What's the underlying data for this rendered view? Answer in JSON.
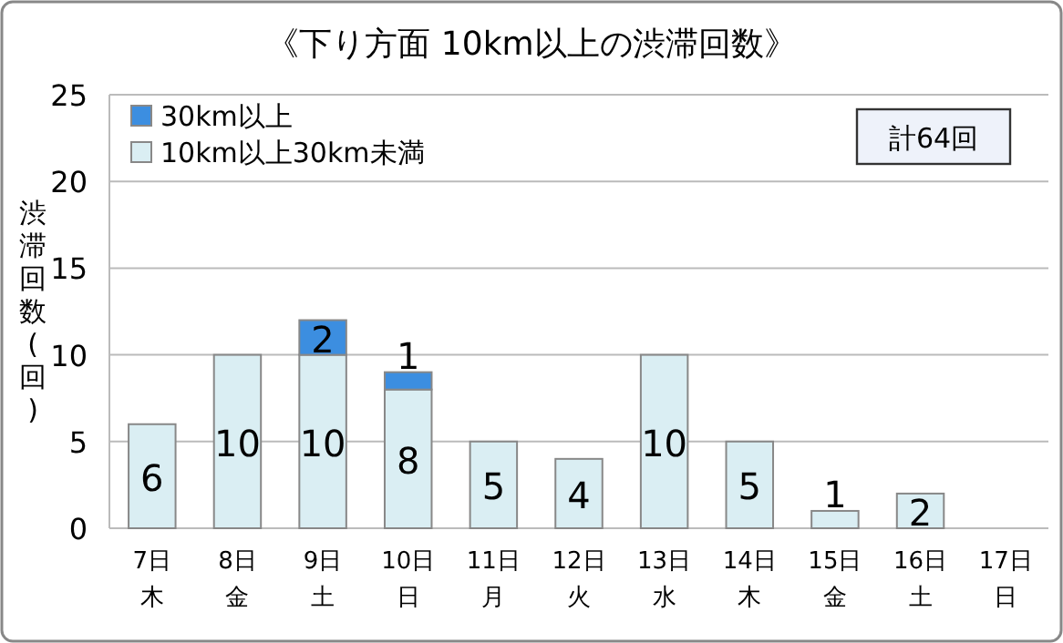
{
  "chart_data": {
    "type": "bar",
    "stacked": true,
    "title": "《下り方面 10km以上の渋滞回数》",
    "ylabel": "渋滞回数(回)",
    "categories": [
      "7日木",
      "8日金",
      "9日土",
      "10日日",
      "11日月",
      "12日火",
      "13日水",
      "14日木",
      "15日金",
      "16日土",
      "17日日"
    ],
    "series": [
      {
        "name": "10km以上30km未満",
        "color": "#daeef3",
        "values": [
          6,
          10,
          10,
          8,
          5,
          4,
          10,
          5,
          1,
          2,
          null
        ]
      },
      {
        "name": "30km以上",
        "color": "#3c8ee0",
        "values": [
          null,
          null,
          2,
          1,
          null,
          null,
          null,
          null,
          null,
          null,
          null
        ]
      }
    ],
    "ylim": [
      0,
      25
    ],
    "yticks": [
      0,
      5,
      10,
      15,
      20,
      25
    ],
    "grid": "y",
    "legend": "top left",
    "data_labels": true,
    "annotations": [
      "計64回"
    ]
  }
}
